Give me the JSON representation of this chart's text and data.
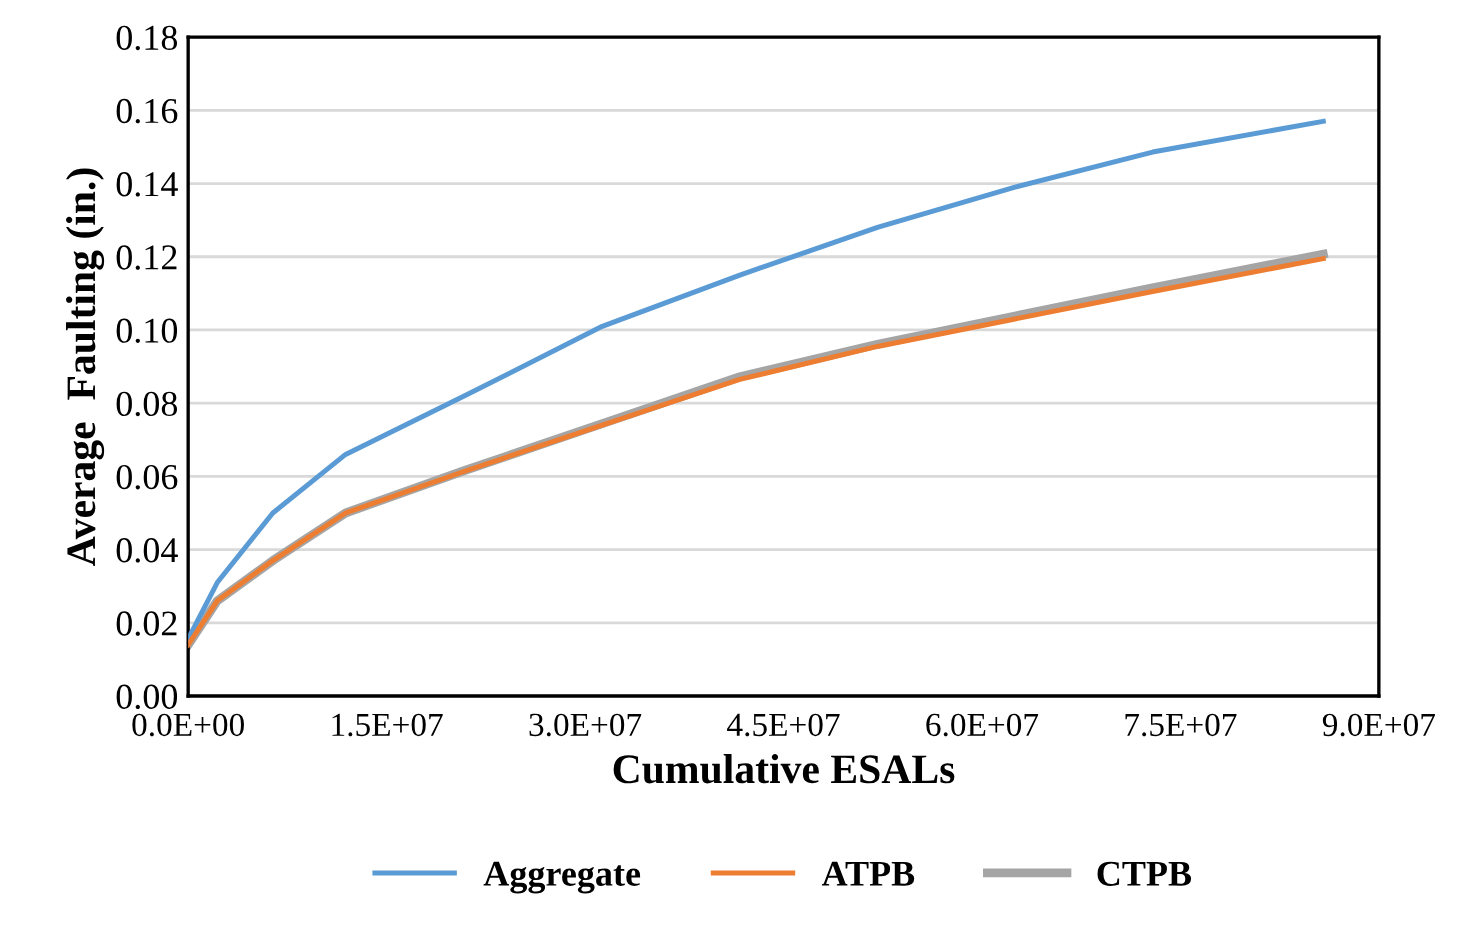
{
  "chart_data": {
    "type": "line",
    "xlabel": "Cumulative ESALs",
    "ylabel": "Average  Faulting (in.)",
    "xlim": [
      0,
      90000000
    ],
    "ylim": [
      0,
      0.18
    ],
    "xticks": [
      {
        "value": 0,
        "label": "0.0E+00"
      },
      {
        "value": 15000000,
        "label": "1.5E+07"
      },
      {
        "value": 30000000,
        "label": "3.0E+07"
      },
      {
        "value": 45000000,
        "label": "4.5E+07"
      },
      {
        "value": 60000000,
        "label": "6.0E+07"
      },
      {
        "value": 75000000,
        "label": "7.5E+07"
      },
      {
        "value": 90000000,
        "label": "9.0E+07"
      }
    ],
    "yticks": [
      {
        "value": 0,
        "label": "0.00"
      },
      {
        "value": 0.02,
        "label": "0.02"
      },
      {
        "value": 0.04,
        "label": "0.04"
      },
      {
        "value": 0.06,
        "label": "0.06"
      },
      {
        "value": 0.08,
        "label": "0.08"
      },
      {
        "value": 0.1,
        "label": "0.10"
      },
      {
        "value": 0.12,
        "label": "0.12"
      },
      {
        "value": 0.14,
        "label": "0.14"
      },
      {
        "value": 0.16,
        "label": "0.16"
      },
      {
        "value": 0.18,
        "label": "0.18"
      }
    ],
    "grid": "y",
    "legend": "bottom",
    "x": [
      0,
      2200000,
      6400000,
      11900000,
      20900000,
      31300000,
      41700000,
      52100000,
      62500000,
      72900000,
      85800000
    ],
    "series": [
      {
        "name": "Aggregate",
        "color": "#5b9bd5",
        "values": [
          0.0156,
          0.031,
          0.05,
          0.066,
          0.082,
          0.101,
          0.115,
          0.128,
          0.139,
          0.1486,
          0.157
        ]
      },
      {
        "name": "ATPB",
        "color": "#ed7d31",
        "values": [
          0.014,
          0.026,
          0.037,
          0.05,
          0.0614,
          0.074,
          0.0865,
          0.0955,
          0.103,
          0.1105,
          0.1195
        ]
      },
      {
        "name": "CTPB",
        "color": "#a5a5a5",
        "values": [
          0.014,
          0.026,
          0.037,
          0.05,
          0.0616,
          0.0744,
          0.0872,
          0.0961,
          0.1038,
          0.1115,
          0.1207
        ]
      }
    ]
  }
}
